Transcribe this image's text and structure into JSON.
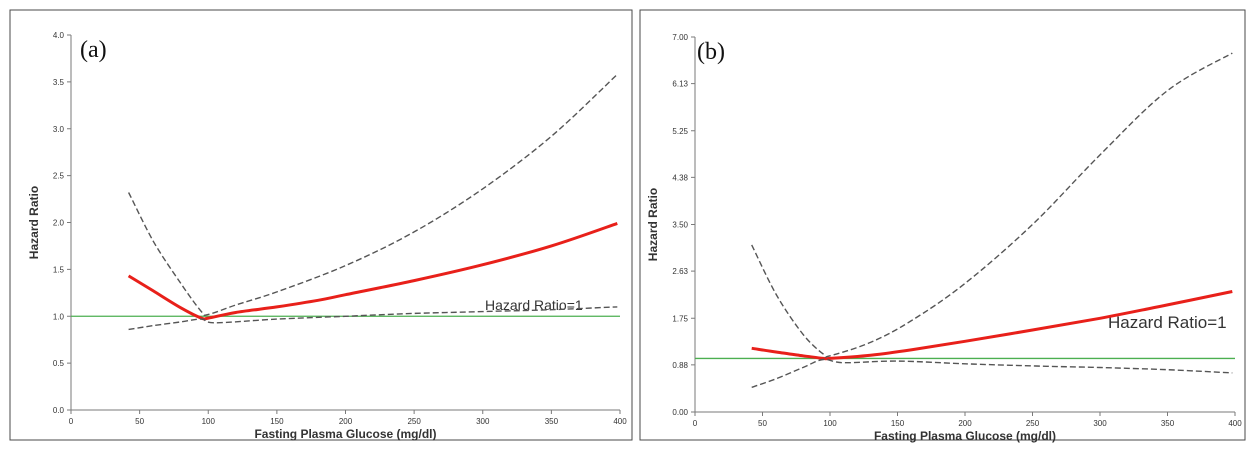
{
  "chart_data": [
    {
      "type": "line",
      "panel_label": "(a)",
      "xlabel": "Fasting Plasma Glucose (mg/dl)",
      "ylabel": "Hazard Ratio",
      "xlim": [
        0,
        400
      ],
      "ylim": [
        0,
        4.0
      ],
      "x_ticks": [
        0,
        50,
        100,
        150,
        200,
        250,
        300,
        350,
        400
      ],
      "y_ticks": [
        0.0,
        0.5,
        1.0,
        1.5,
        2.0,
        2.5,
        3.0,
        3.5,
        4.0
      ],
      "y_tick_labels": [
        "0.0",
        "0.5",
        "1.0",
        "1.5",
        "2.0",
        "2.5",
        "3.0",
        "3.5",
        "4.0"
      ],
      "reference_line": {
        "y": 1,
        "label": "Hazard Ratio=1",
        "color": "#4caf50"
      },
      "series": [
        {
          "role": "estimate",
          "color": "#e8201a",
          "style": "solid",
          "x": [
            42,
            60,
            80,
            95,
            100,
            120,
            150,
            180,
            200,
            250,
            300,
            350,
            398
          ],
          "y": [
            1.43,
            1.27,
            1.09,
            0.98,
            0.98,
            1.04,
            1.1,
            1.17,
            1.23,
            1.38,
            1.55,
            1.75,
            1.99
          ]
        },
        {
          "role": "upper-ci",
          "color": "#555555",
          "style": "dashed",
          "x": [
            42,
            60,
            80,
            95,
            100,
            120,
            150,
            200,
            250,
            300,
            350,
            398
          ],
          "y": [
            2.32,
            1.8,
            1.35,
            1.05,
            1.02,
            1.12,
            1.26,
            1.54,
            1.9,
            2.36,
            2.92,
            3.58
          ]
        },
        {
          "role": "lower-ci",
          "color": "#555555",
          "style": "dashed",
          "x": [
            42,
            60,
            80,
            95,
            105,
            150,
            200,
            250,
            300,
            350,
            398
          ],
          "y": [
            0.86,
            0.9,
            0.94,
            0.97,
            0.93,
            0.97,
            1.0,
            1.03,
            1.05,
            1.07,
            1.1
          ]
        }
      ]
    },
    {
      "type": "line",
      "panel_label": "(b)",
      "xlabel": "Fasting Plasma Glucose (mg/dl)",
      "ylabel": "Hazard Ratio",
      "xlim": [
        0,
        400
      ],
      "ylim": [
        0,
        7.0
      ],
      "x_ticks": [
        0,
        50,
        100,
        150,
        200,
        250,
        300,
        350,
        400
      ],
      "y_ticks": [
        0.0,
        0.88,
        1.75,
        2.63,
        3.5,
        4.38,
        5.25,
        6.13,
        7.0
      ],
      "y_tick_labels": [
        "0.00",
        "0.88",
        "1.75",
        "2.63",
        "3.50",
        "4.38",
        "5.25",
        "6.13",
        "7.00"
      ],
      "reference_line": {
        "y": 1,
        "label": "Hazard Ratio=1",
        "color": "#4caf50"
      },
      "series": [
        {
          "role": "estimate",
          "color": "#e8201a",
          "style": "solid",
          "x": [
            42,
            60,
            80,
            95,
            100,
            130,
            160,
            200,
            250,
            300,
            350,
            398
          ],
          "y": [
            1.19,
            1.12,
            1.05,
            1.0,
            1.0,
            1.06,
            1.16,
            1.32,
            1.53,
            1.75,
            2.0,
            2.25
          ]
        },
        {
          "role": "upper-ci",
          "color": "#555555",
          "style": "dashed",
          "x": [
            42,
            60,
            80,
            95,
            100,
            130,
            160,
            200,
            250,
            300,
            350,
            398
          ],
          "y": [
            3.12,
            2.2,
            1.45,
            1.08,
            1.05,
            1.3,
            1.7,
            2.4,
            3.5,
            4.8,
            6.0,
            6.7
          ]
        },
        {
          "role": "lower-ci",
          "color": "#555555",
          "style": "dashed",
          "x": [
            42,
            60,
            80,
            95,
            110,
            150,
            200,
            250,
            300,
            350,
            398
          ],
          "y": [
            0.46,
            0.62,
            0.83,
            0.98,
            0.92,
            0.95,
            0.9,
            0.86,
            0.83,
            0.79,
            0.73
          ]
        }
      ]
    }
  ]
}
